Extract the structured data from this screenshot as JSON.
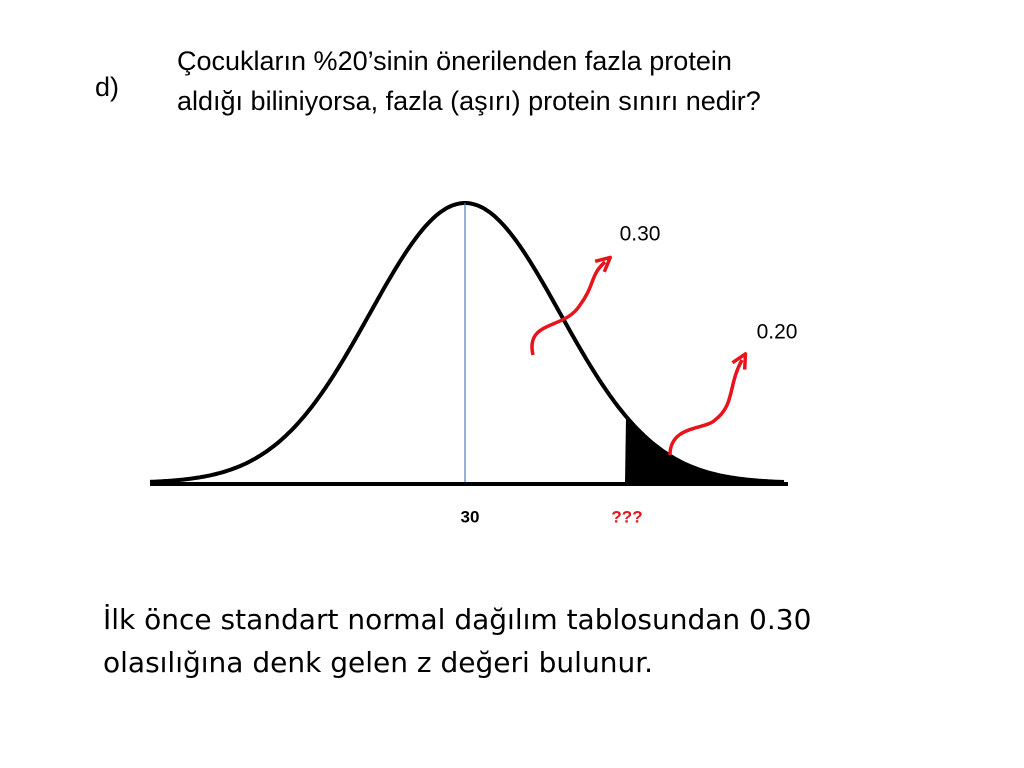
{
  "label": "d)",
  "question": [
    "Çocukların %20’sinin önerilenden fazla protein",
    "aldığı biliniyorsa, fazla (aşırı) protein sınırı nedir?"
  ],
  "diagram": {
    "upper_area_label": "0.30",
    "tail_area_label": "0.20",
    "mean_label": "30",
    "cutoff_label": "???"
  },
  "explanation": [
    "İlk önce standart normal dağılım tablosundan 0.30",
    "olasılığına denk gelen z değeri bulunur."
  ]
}
